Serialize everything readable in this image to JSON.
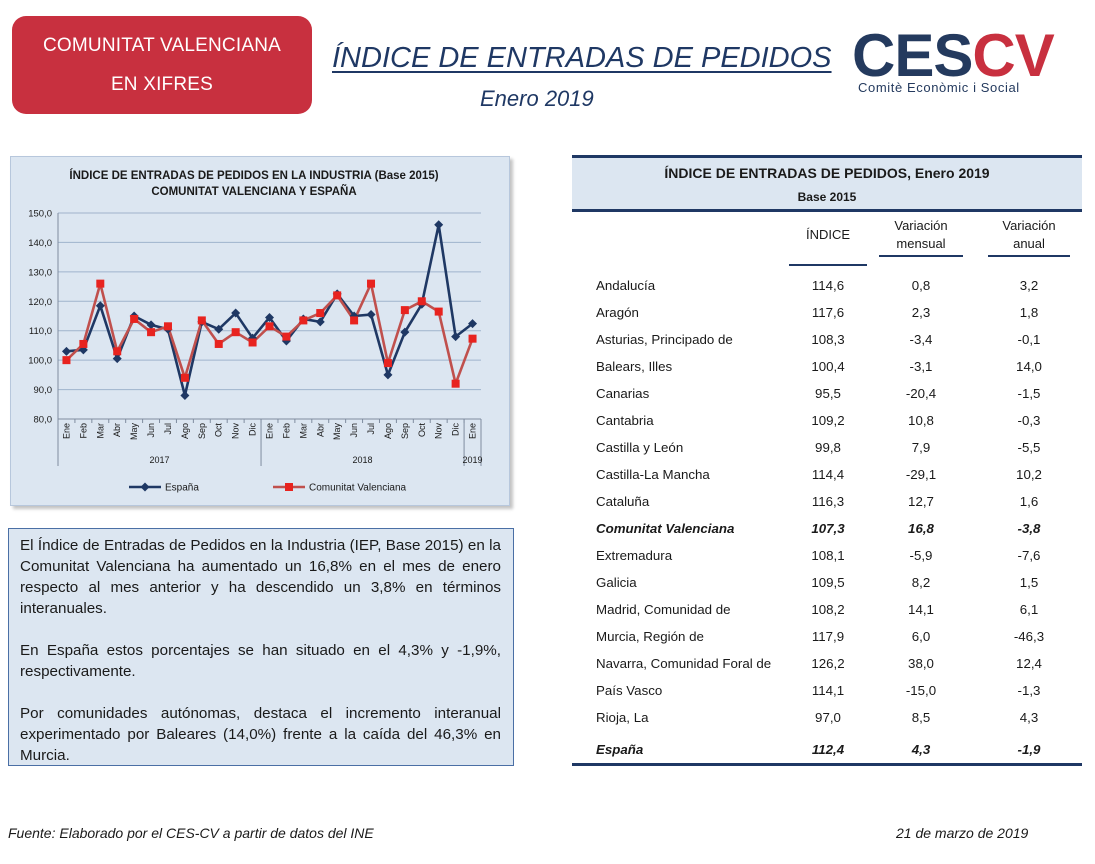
{
  "header": {
    "badge_line1": "COMUNITAT VALENCIANA",
    "badge_line2": "EN XIFRES",
    "title": "ÍNDICE DE ENTRADAS DE PEDIDOS",
    "subtitle": "Enero 2019",
    "logo_left": "CES",
    "logo_right": "CV",
    "logo_sub": "Comitè Econòmic i Social"
  },
  "chart_data": {
    "type": "line",
    "title": "ÍNDICE DE ENTRADAS DE PEDIDOS EN LA INDUSTRIA (Base 2015)",
    "subtitle": "COMUNITAT  VALENCIANA  Y ESPAÑA",
    "categories": [
      "Ene",
      "Feb",
      "Mar",
      "Abr",
      "May",
      "Jun",
      "Jul",
      "Ago",
      "Sep",
      "Oct",
      "Nov",
      "Dic",
      "Ene",
      "Feb",
      "Mar",
      "Abr",
      "May",
      "Jun",
      "Jul",
      "Ago",
      "Sep",
      "Oct",
      "Nov",
      "Dic",
      "Ene"
    ],
    "year_groups": [
      {
        "label": "2017",
        "start": 0,
        "end": 11
      },
      {
        "label": "2018",
        "start": 12,
        "end": 23
      },
      {
        "label": "2019",
        "start": 24,
        "end": 24
      }
    ],
    "ylim": [
      80,
      150
    ],
    "yticks": [
      "80,0",
      "90,0",
      "100,0",
      "110,0",
      "120,0",
      "130,0",
      "140,0",
      "150,0"
    ],
    "grid": true,
    "legend_position": "bottom",
    "series": [
      {
        "name": "España",
        "color": "#1f3864",
        "marker": "diamond",
        "values": [
          103.0,
          103.5,
          118.5,
          100.5,
          115.0,
          112.0,
          110.5,
          88.0,
          113.0,
          110.5,
          116.0,
          107.5,
          114.5,
          106.5,
          114.0,
          113.0,
          122.5,
          115.0,
          115.5,
          95.0,
          109.5,
          119.0,
          146.0,
          108.0,
          112.4
        ]
      },
      {
        "name": "Comunitat Valenciana",
        "color": "#c0504d",
        "marker": "square",
        "values": [
          100.0,
          105.5,
          126.0,
          103.0,
          114.0,
          109.5,
          111.5,
          94.0,
          113.5,
          105.5,
          109.5,
          106.0,
          111.5,
          108.0,
          113.5,
          116.0,
          122.0,
          113.5,
          126.0,
          99.0,
          117.0,
          120.0,
          116.5,
          92.0,
          107.3
        ]
      }
    ]
  },
  "summary": {
    "p1": "El Índice de Entradas de Pedidos en la Industria (IEP, Base 2015) en la Comunitat Valenciana ha aumentado un 16,8% en el mes de enero respecto al mes anterior y ha descendido un 3,8% en términos interanuales.",
    "p2": "En España estos porcentajes se han situado en el 4,3% y -1,9%, respectivamente.",
    "p3": "Por comunidades autónomas, destaca el incremento interanual experimentado por Baleares (14,0%) frente a la caída del 46,3% en Murcia."
  },
  "table": {
    "title": "ÍNDICE DE ENTRADAS DE PEDIDOS, Enero 2019",
    "base": "Base 2015",
    "col1": "ÍNDICE",
    "col2_line1": "Variación",
    "col2_line2": "mensual",
    "col3_line1": "Variación",
    "col3_line2": "anual",
    "rows": [
      {
        "name": "Andalucía",
        "index": "114,6",
        "monthly": "0,8",
        "annual": "3,2"
      },
      {
        "name": "Aragón",
        "index": "117,6",
        "monthly": "2,3",
        "annual": "1,8"
      },
      {
        "name": "Asturias, Principado de",
        "index": "108,3",
        "monthly": "-3,4",
        "annual": "-0,1"
      },
      {
        "name": "Balears, Illes",
        "index": "100,4",
        "monthly": "-3,1",
        "annual": "14,0"
      },
      {
        "name": "Canarias",
        "index": "95,5",
        "monthly": "-20,4",
        "annual": "-1,5"
      },
      {
        "name": "Cantabria",
        "index": "109,2",
        "monthly": "10,8",
        "annual": "-0,3"
      },
      {
        "name": "Castilla y León",
        "index": "99,8",
        "monthly": "7,9",
        "annual": "-5,5"
      },
      {
        "name": "Castilla-La Mancha",
        "index": "114,4",
        "monthly": "-29,1",
        "annual": "10,2"
      },
      {
        "name": "Cataluña",
        "index": "116,3",
        "monthly": "12,7",
        "annual": "1,6"
      },
      {
        "name": "Comunitat Valenciana",
        "index": "107,3",
        "monthly": "16,8",
        "annual": "-3,8"
      },
      {
        "name": "Extremadura",
        "index": "108,1",
        "monthly": "-5,9",
        "annual": "-7,6"
      },
      {
        "name": "Galicia",
        "index": "109,5",
        "monthly": "8,2",
        "annual": "1,5"
      },
      {
        "name": "Madrid, Comunidad de",
        "index": "108,2",
        "monthly": "14,1",
        "annual": "6,1"
      },
      {
        "name": "Murcia, Región de",
        "index": "117,9",
        "monthly": "6,0",
        "annual": "-46,3"
      },
      {
        "name": "Navarra, Comunidad Foral de",
        "index": "126,2",
        "monthly": "38,0",
        "annual": "12,4"
      },
      {
        "name": "País Vasco",
        "index": "114,1",
        "monthly": "-15,0",
        "annual": "-1,3"
      },
      {
        "name": "Rioja, La",
        "index": "97,0",
        "monthly": "8,5",
        "annual": "4,3"
      },
      {
        "name": "España",
        "index": "112,4",
        "monthly": "4,3",
        "annual": "-1,9"
      }
    ]
  },
  "footer": {
    "source": "Fuente: Elaborado por el CES-CV a partir de datos del INE",
    "date": "21 de marzo de 2019"
  }
}
